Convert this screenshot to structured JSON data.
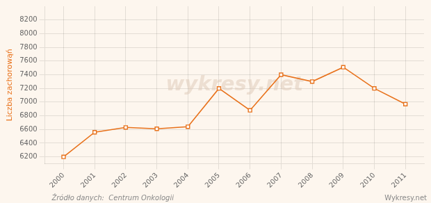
{
  "chart_data": {
    "type": "line",
    "x": [
      2000,
      2001,
      2002,
      2003,
      2004,
      2005,
      2006,
      2007,
      2008,
      2009,
      2010,
      2011
    ],
    "values": [
      6200,
      6560,
      6630,
      6610,
      6640,
      7200,
      6880,
      7400,
      7300,
      7510,
      7200,
      6970
    ],
    "color": "#e8721c",
    "marker": "square",
    "line_style": "solid",
    "ylabel": "Liczba zachorowąń",
    "xlim": [
      1999.4,
      2011.6
    ],
    "xticks": [
      2000,
      2001,
      2002,
      2003,
      2004,
      2005,
      2006,
      2007,
      2008,
      2009,
      2010,
      2011
    ],
    "ylim": [
      6100,
      8400
    ],
    "yticks": [
      6200,
      6400,
      6600,
      6800,
      7000,
      7200,
      7400,
      7600,
      7800,
      8000,
      8200
    ],
    "grid": true,
    "annotations": [
      "wykresy.net",
      "Źródło danych:  Centrum Onkologii",
      "Wykresy.net"
    ]
  }
}
